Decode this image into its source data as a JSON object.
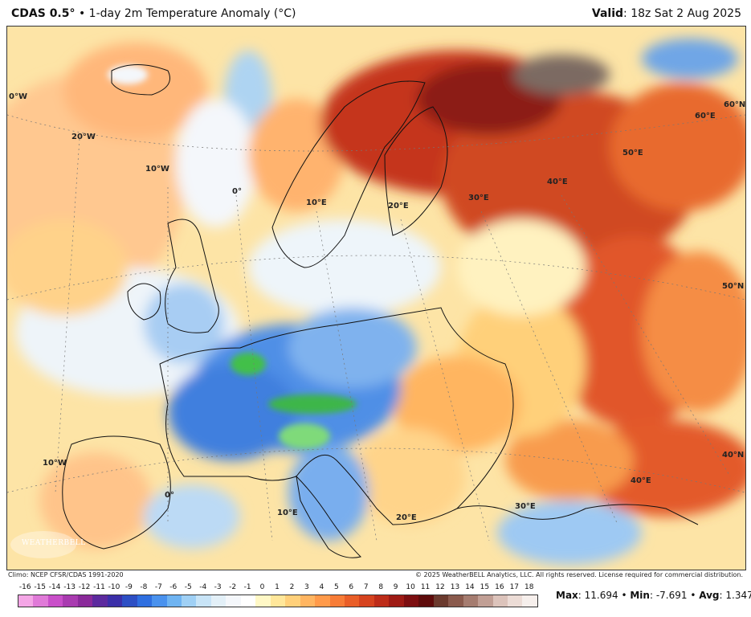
{
  "header": {
    "model": "CDAS 0.5°",
    "separator": "•",
    "product": "1-day 2m Temperature Anomaly (°C)",
    "valid_label": "Valid",
    "valid_time": ": 18z Sat 2 Aug 2025"
  },
  "map": {
    "grid_labels": [
      "0°W",
      "20°W",
      "10°W",
      "0°",
      "10°E",
      "20°E",
      "30°E",
      "40°E",
      "50°E",
      "60°E",
      "60°N",
      "50°N",
      "40°N",
      "10°W",
      "0°",
      "10°E",
      "20°E",
      "30°E",
      "40°E"
    ],
    "logo_text": "WEATHERBELL"
  },
  "footer": {
    "climo": "Climo: NCEP CFSR/CDAS 1991-2020",
    "copyright": "© 2025 WeatherBELL Analytics, LLC. All rights reserved. License required for commercial distribution."
  },
  "colorbar": {
    "labels": [
      "-16",
      "-15",
      "-14",
      "-13",
      "-12",
      "-11",
      "-10",
      "-9",
      "-8",
      "-7",
      "-6",
      "-5",
      "-4",
      "-3",
      "-2",
      "-1",
      "0",
      "1",
      "2",
      "3",
      "4",
      "5",
      "6",
      "7",
      "8",
      "9",
      "10",
      "11",
      "12",
      "13",
      "14",
      "15",
      "16",
      "17",
      "18"
    ],
    "colors": [
      "#f4a6e6",
      "#e07ad8",
      "#c94fc9",
      "#a93bb0",
      "#8a2a9a",
      "#5c2a9e",
      "#3b2fa8",
      "#2d4fc4",
      "#2f6fe0",
      "#4a92ee",
      "#6fb4f2",
      "#9fd0f5",
      "#c8e4f7",
      "#e3f0f8",
      "#f4f7fb",
      "#ffffff",
      "#fff8c6",
      "#ffe79a",
      "#ffd07a",
      "#ffb561",
      "#ff9a4a",
      "#f77c37",
      "#e95e28",
      "#d6431f",
      "#bd2c19",
      "#9e1a14",
      "#7c0e10",
      "#5e0b0b",
      "#6b3a2e",
      "#8a5a4d",
      "#a57c70",
      "#c19f95",
      "#dcc3bb",
      "#ecdcd6",
      "#f6efec"
    ]
  },
  "stats": {
    "max_label": "Max",
    "max_value": ": 11.694",
    "sep1": " • ",
    "min_label": "Min",
    "min_value": ": -7.691",
    "sep2": " • ",
    "avg_label": "Avg",
    "avg_value": ": 1.347"
  }
}
